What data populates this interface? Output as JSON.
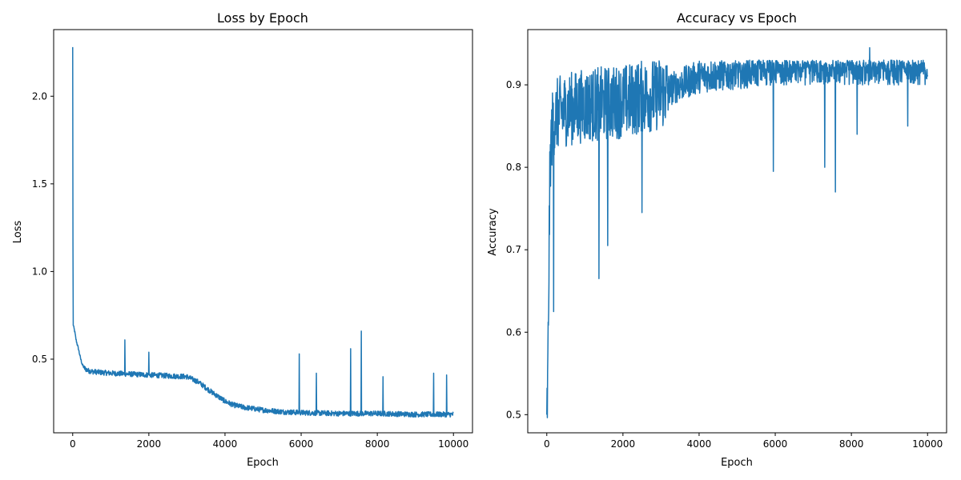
{
  "chart_data": [
    {
      "type": "line",
      "title": "Loss by Epoch",
      "xlabel": "Epoch",
      "ylabel": "Loss",
      "xlim": [
        -500,
        10500
      ],
      "ylim": [
        0.08,
        2.38
      ],
      "xticks": [
        0,
        2000,
        4000,
        6000,
        8000,
        10000
      ],
      "xtick_labels": [
        "0",
        "2000",
        "4000",
        "6000",
        "8000",
        "10000"
      ],
      "yticks": [
        0.5,
        1.0,
        1.5,
        2.0
      ],
      "ytick_labels": [
        "0.5",
        "1.0",
        "1.5",
        "2.0"
      ],
      "grid": false,
      "color": "#1f77b4",
      "series": [
        {
          "x": [
            0,
            10,
            20,
            40,
            60,
            80,
            100,
            150,
            200,
            250,
            300,
            400,
            500,
            700,
            1000,
            1500,
            2000,
            2500,
            3000,
            3300,
            3600,
            3800,
            4000,
            4200,
            4500,
            5000,
            5500,
            6000,
            7000,
            8000,
            9000,
            10000
          ],
          "y": [
            2.28,
            0.7,
            0.69,
            0.67,
            0.65,
            0.62,
            0.6,
            0.56,
            0.51,
            0.47,
            0.45,
            0.435,
            0.43,
            0.425,
            0.42,
            0.415,
            0.41,
            0.405,
            0.4,
            0.37,
            0.32,
            0.29,
            0.26,
            0.24,
            0.225,
            0.21,
            0.2,
            0.195,
            0.19,
            0.19,
            0.185,
            0.185
          ],
          "noise": 0.015,
          "spikes": [
            {
              "x": 1370,
              "y": 0.61
            },
            {
              "x": 2000,
              "y": 0.54
            },
            {
              "x": 5950,
              "y": 0.53
            },
            {
              "x": 6400,
              "y": 0.42
            },
            {
              "x": 7300,
              "y": 0.56
            },
            {
              "x": 7580,
              "y": 0.66
            },
            {
              "x": 8150,
              "y": 0.4
            },
            {
              "x": 9480,
              "y": 0.42
            },
            {
              "x": 9820,
              "y": 0.41
            }
          ]
        }
      ]
    },
    {
      "type": "line",
      "title": "Accuracy vs Epoch",
      "xlabel": "Epoch",
      "ylabel": "Accuracy",
      "xlim": [
        -500,
        10500
      ],
      "ylim": [
        0.478,
        0.967
      ],
      "xticks": [
        0,
        2000,
        4000,
        6000,
        8000,
        10000
      ],
      "xtick_labels": [
        "0",
        "2000",
        "4000",
        "6000",
        "8000",
        "10000"
      ],
      "yticks": [
        0.5,
        0.6,
        0.7,
        0.8,
        0.9
      ],
      "ytick_labels": [
        "0.5",
        "0.6",
        "0.7",
        "0.8",
        "0.9"
      ],
      "grid": false,
      "color": "#1f77b4",
      "series": [
        {
          "x": [
            0,
            20,
            40,
            60,
            80,
            100,
            150,
            200,
            300,
            500,
            1000,
            2000,
            3000,
            4000,
            5000,
            6000,
            8000,
            10000
          ],
          "y": [
            0.5,
            0.52,
            0.6,
            0.7,
            0.78,
            0.82,
            0.85,
            0.86,
            0.865,
            0.87,
            0.875,
            0.88,
            0.89,
            0.91,
            0.915,
            0.92,
            0.92,
            0.92
          ],
          "noise": 0.045,
          "spikes": [
            {
              "x": 180,
              "y": 0.625
            },
            {
              "x": 1370,
              "y": 0.665
            },
            {
              "x": 1600,
              "y": 0.705
            },
            {
              "x": 2500,
              "y": 0.745
            },
            {
              "x": 5950,
              "y": 0.795
            },
            {
              "x": 7300,
              "y": 0.8
            },
            {
              "x": 7580,
              "y": 0.77
            },
            {
              "x": 8150,
              "y": 0.84
            },
            {
              "x": 9480,
              "y": 0.85
            },
            {
              "x": 8480,
              "y": 0.945
            }
          ]
        }
      ]
    }
  ]
}
